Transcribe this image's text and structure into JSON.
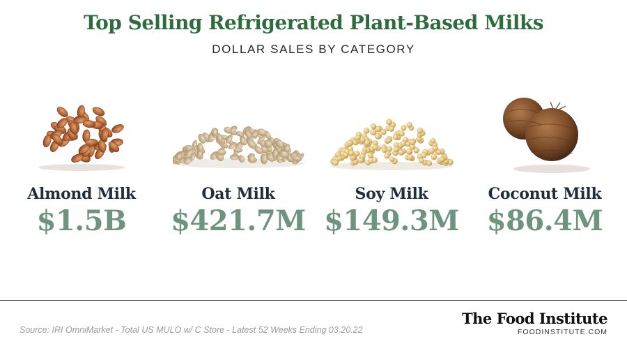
{
  "header": {
    "title": "Top Selling Refrigerated Plant-Based Milks",
    "subtitle": "DOLLAR SALES BY CATEGORY"
  },
  "categories": [
    {
      "name": "Almond Milk",
      "value": "$1.5B",
      "icon": "almonds-icon"
    },
    {
      "name": "Oat Milk",
      "value": "$421.7M",
      "icon": "oats-icon"
    },
    {
      "name": "Soy Milk",
      "value": "$149.3M",
      "icon": "soybeans-icon"
    },
    {
      "name": "Coconut Milk",
      "value": "$86.4M",
      "icon": "coconut-icon"
    }
  ],
  "footer": {
    "source": "Source: IRI OmniMarket - Total US MULO w/ C Store - Latest 52 Weeks Ending 03.20.22",
    "brand_name": "The Food Institute",
    "brand_url": "FOODINSTITUTE.COM"
  },
  "colors": {
    "title": "#2e6b3d",
    "value": "#6e9480",
    "name": "#1f2d3d"
  }
}
